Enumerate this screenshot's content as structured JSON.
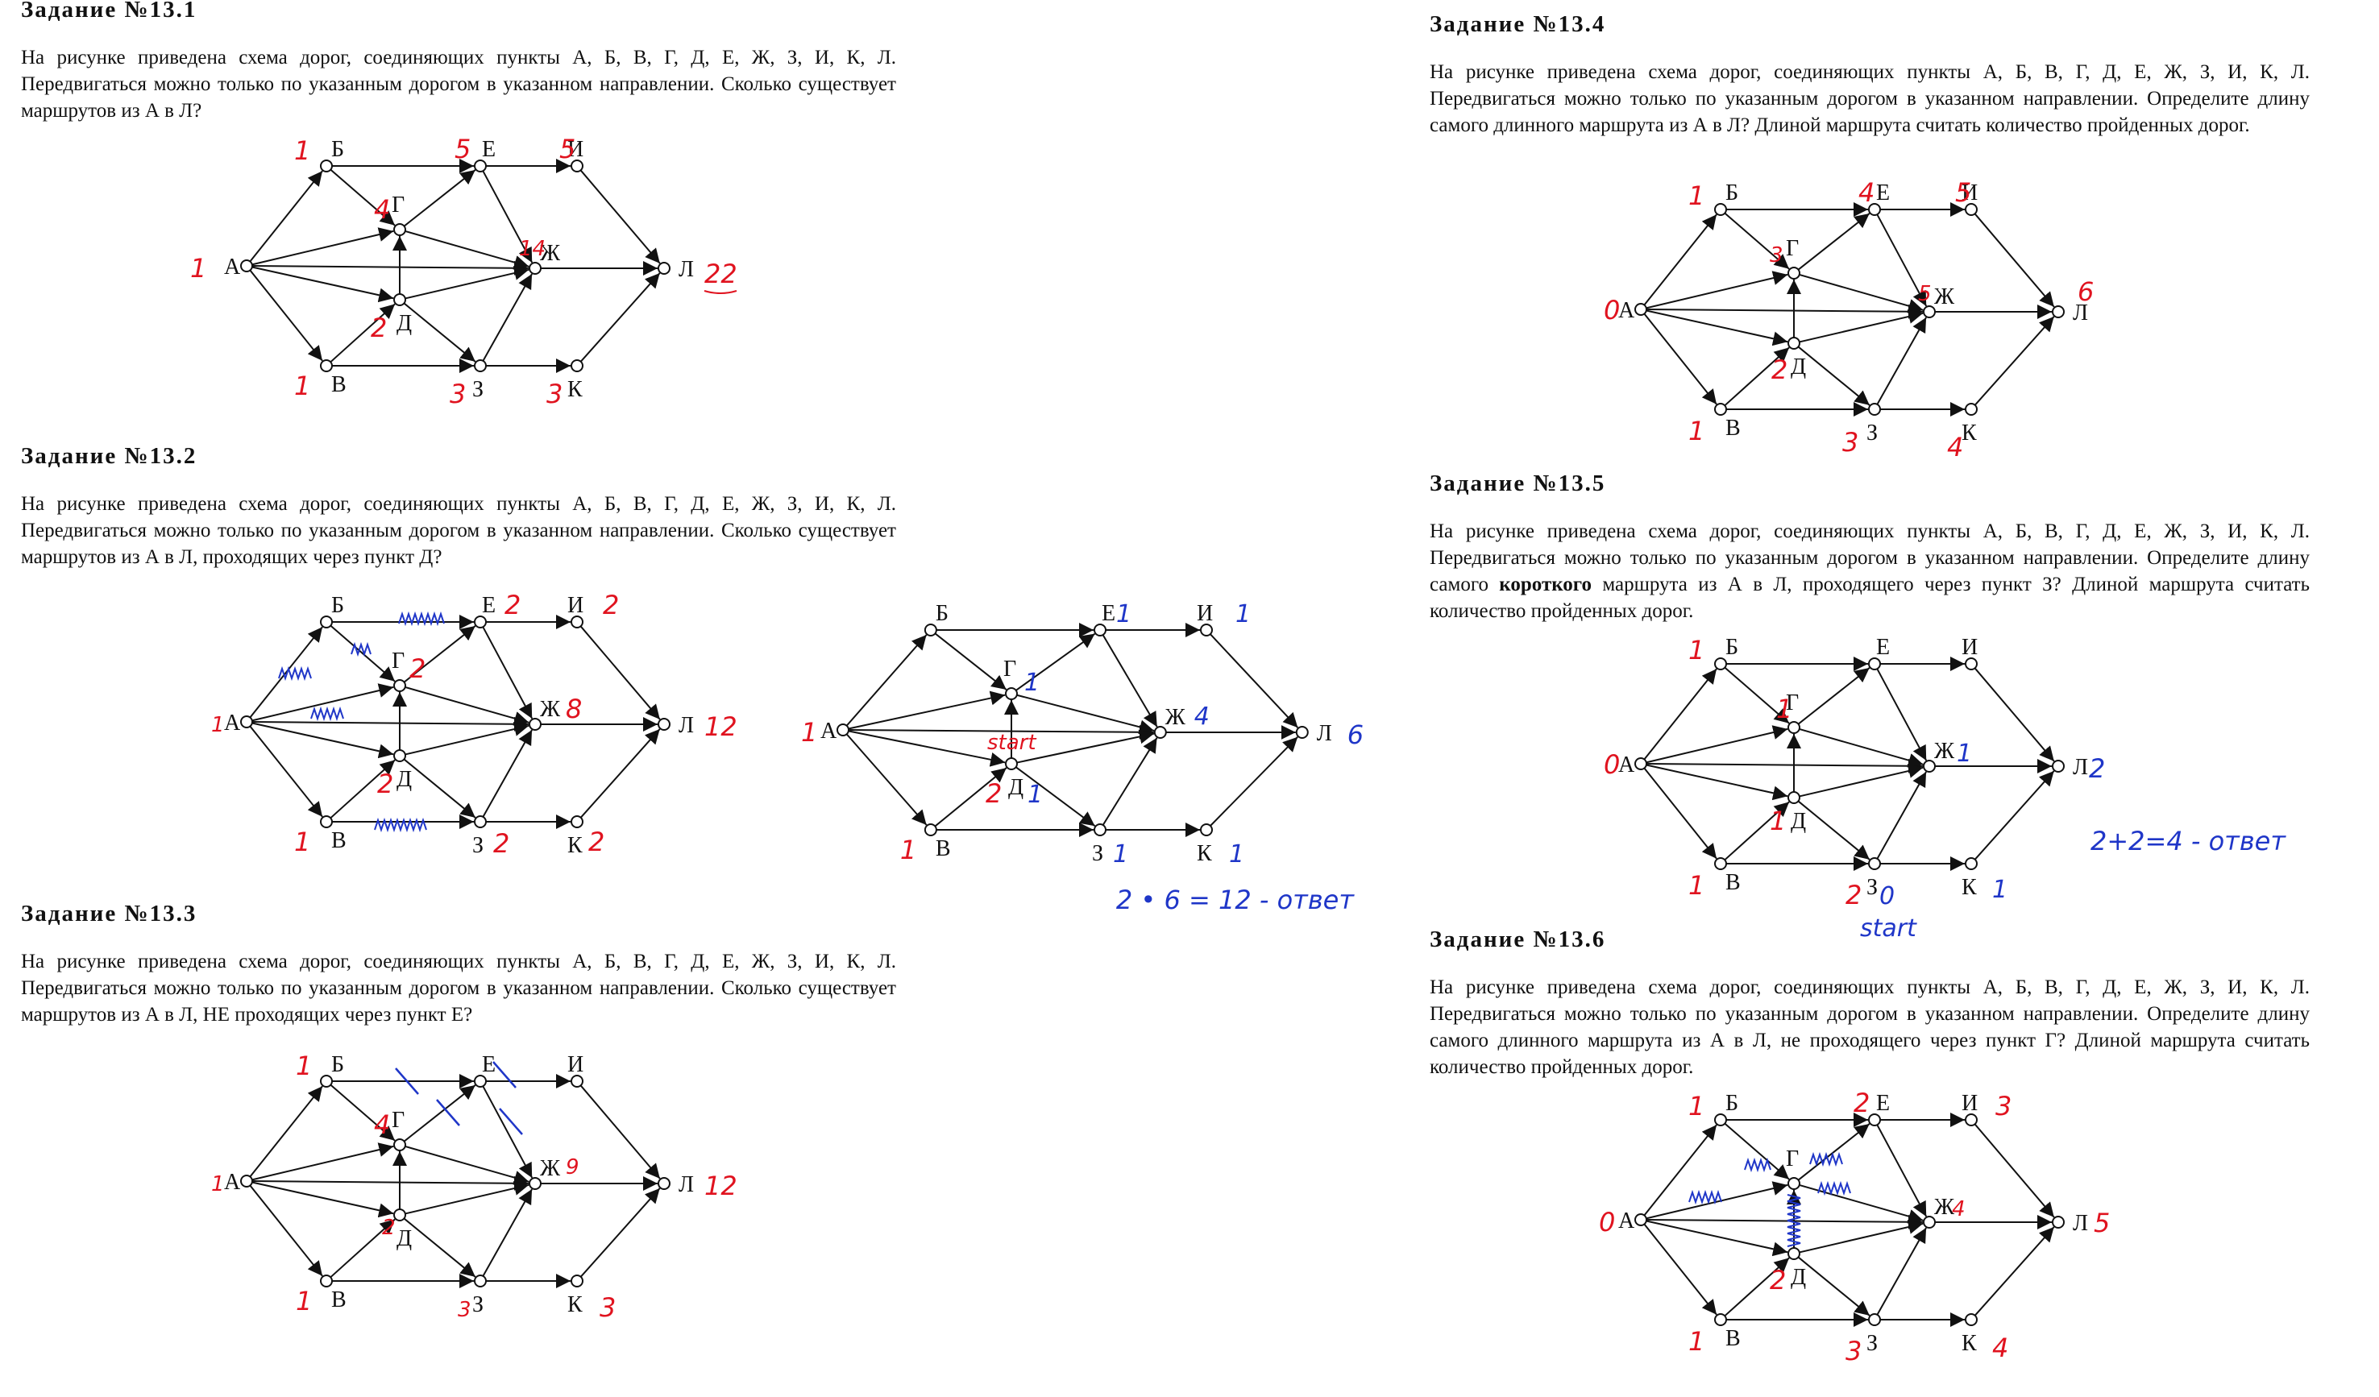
{
  "tasks": [
    {
      "title": "Задание №13.1",
      "text": "На рисунке приведена схема дорог, соединяющих пункты А, Б, В, Г, Д, Е, Ж, З, И, К, Л. Передвигаться можно только по указанным дорогом в указанном направлении. Сколько существует маршрутов из А в Л?"
    },
    {
      "title": "Задание №13.2",
      "text": "На рисунке приведена схема дорог, соединяющих пункты А, Б, В, Г, Д, Е, Ж, З, И, К, Л. Передвигаться можно только по указанным дорогом в указанном направлении. Сколько существует маршрутов из А в Л, проходящих через пункт Д?"
    },
    {
      "title": "Задание №13.3",
      "text": "На рисунке приведена схема дорог, соединяющих пункты А, Б, В, Г, Д, Е, Ж, З, И, К, Л. Передвигаться можно только по указанным дорогом в указанном направлении. Сколько существует маршрутов из А в Л, НЕ проходящих через пункт Е?"
    },
    {
      "title": "Задание №13.4",
      "text": "На рисунке приведена схема дорог, соединяющих пункты А, Б, В, Г, Д, Е, Ж, З, И, К, Л. Передвигаться можно только по указанным дорогом в указанном направлении. Определите длину самого длинного маршрута из А в Л? Длиной маршрута считать количество пройденных дорог."
    },
    {
      "title": "Задание №13.5",
      "text_before": "На рисунке приведена схема дорог, соединяющих пункты А, Б, В, Г, Д, Е, Ж, З, И, К, Л. Передвигаться можно только по указанным дорогом в указанном направлении. Определите длину самого ",
      "text_bold": "короткого",
      "text_after": " маршрута из А в Л, проходящего через пункт З? Длиной маршрута считать количество пройденных дорог."
    },
    {
      "title": "Задание №13.6",
      "text": "На рисунке приведена схема дорог, соединяющих пункты А, Б, В, Г, Д, Е, Ж, З, И, К, Л. Передвигаться можно только по указанным дорогом в указанном направлении. Определите длину самого длинного маршрута из А в Л, не проходящего через пункт Г? Длиной маршрута считать количество пройденных дорог."
    }
  ],
  "node_labels": {
    "A": "А",
    "B": "Б",
    "V": "В",
    "G": "Г",
    "D": "Д",
    "E": "Е",
    "Zh": "Ж",
    "Z": "З",
    "I": "И",
    "K": "К",
    "L": "Л"
  },
  "graphs": [
    {
      "id": "g1",
      "ann": {
        "A": "1",
        "B": "1",
        "V": "1",
        "G": "4",
        "D": "2",
        "E": "5",
        "I": "5",
        "Zh": "14",
        "Z": "3",
        "K": "3",
        "L": "22"
      },
      "color": "red"
    },
    {
      "id": "g2",
      "ann": {
        "A": "1",
        "B": "",
        "V": "1",
        "G": "2",
        "D": "2",
        "E": "2",
        "I": "2",
        "Zh": "8",
        "Z": "2",
        "K": "2",
        "L": "12"
      },
      "color": "red"
    },
    {
      "id": "g2b",
      "ann": {
        "A": "1",
        "V": "1",
        "G": "1",
        "D": "2",
        "Dx": "1",
        "E": "1",
        "I": "1",
        "Zh": "4",
        "Z": "1",
        "K": "1",
        "L": "6"
      },
      "start": "start",
      "answer": "2 • 6 = 12 - ответ"
    },
    {
      "id": "g3",
      "ann": {
        "A": "1",
        "B": "1",
        "V": "1",
        "G": "4",
        "D": "2",
        "Zh": "9",
        "Z": "3",
        "K": "3",
        "L": "12"
      }
    },
    {
      "id": "g4",
      "ann": {
        "A": "0",
        "B": "1",
        "V": "1",
        "G": "3",
        "D": "2",
        "E": "4",
        "I": "5",
        "Zh": "5",
        "Z": "3",
        "K": "4",
        "L": "6"
      }
    },
    {
      "id": "g5",
      "ann": {
        "A": "0",
        "B": "1",
        "V": "1",
        "G": "1",
        "D": "1",
        "Zh": "1",
        "Z": "2",
        "Zx": "0",
        "K": "1",
        "L": "2"
      },
      "start": "start",
      "answer": "2+2=4 - ответ"
    },
    {
      "id": "g6",
      "ann": {
        "A": "0",
        "B": "1",
        "V": "1",
        "D": "2",
        "E": "2",
        "I": "3",
        "Zh": "4",
        "Z": "3",
        "K": "4",
        "L": "5"
      }
    }
  ]
}
